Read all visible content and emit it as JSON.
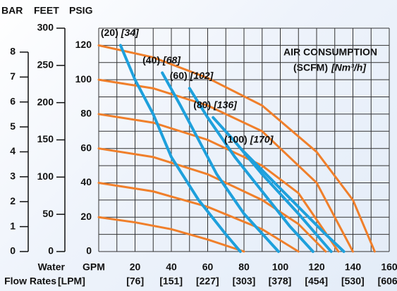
{
  "chart_data": {
    "type": "line",
    "title": "AIR CONSUMPTION",
    "subtitle": "(SCFM)",
    "subtitle_metric": "[Nm³/h]",
    "x_label": "GPM",
    "x2_label": "[LPM]",
    "x_label_prefix": "Water",
    "x2_label_prefix": "Flow Rates",
    "y_label": "PSIG",
    "y2_label": "FEET",
    "y3_label": "BAR",
    "xlim": [
      0,
      160
    ],
    "xticks": [
      20,
      40,
      60,
      80,
      100,
      120,
      140,
      160
    ],
    "x2lim": [
      0,
      606
    ],
    "x2ticks": [
      {
        "value": 76,
        "label": "[76]"
      },
      {
        "value": 151,
        "label": "[151]"
      },
      {
        "value": 227,
        "label": "[227]"
      },
      {
        "value": 303,
        "label": "[303]"
      },
      {
        "value": 378,
        "label": "[378]"
      },
      {
        "value": 454,
        "label": "[454]"
      },
      {
        "value": 530,
        "label": "[530]"
      },
      {
        "value": 606,
        "label": "[606]"
      }
    ],
    "ylim": [
      0,
      130
    ],
    "yticks": [
      0,
      20,
      40,
      60,
      80,
      100,
      120
    ],
    "y2lim": [
      0,
      300
    ],
    "y2ticks": [
      0,
      50,
      100,
      150,
      200,
      250,
      300
    ],
    "y3lim": [
      0,
      8.96
    ],
    "y3ticks": [
      0,
      1,
      2,
      3,
      4,
      5,
      6,
      7,
      8
    ],
    "xgrid": [
      0,
      10,
      20,
      30,
      40,
      50,
      60,
      70,
      80,
      90,
      100,
      110,
      120,
      130,
      140,
      150,
      160
    ],
    "ygrid": [
      0,
      10,
      20,
      30,
      40,
      50,
      60,
      70,
      80,
      90,
      100,
      110,
      120,
      130
    ],
    "grid": true,
    "series": [
      {
        "color": "#f07f2a",
        "x": [
          0,
          20,
          40,
          60,
          80
        ],
        "values": [
          20,
          17,
          13,
          7,
          0
        ]
      },
      {
        "color": "#f07f2a",
        "x": [
          0,
          30,
          60,
          90,
          110
        ],
        "values": [
          40,
          35,
          26,
          13,
          0
        ]
      },
      {
        "color": "#f07f2a",
        "x": [
          0,
          30,
          60,
          90,
          110,
          125
        ],
        "values": [
          60,
          55,
          45,
          30,
          16,
          0
        ]
      },
      {
        "color": "#f07f2a",
        "x": [
          0,
          30,
          60,
          90,
          110,
          132
        ],
        "values": [
          80,
          75,
          65,
          50,
          34,
          0
        ]
      },
      {
        "color": "#f07f2a",
        "x": [
          0,
          30,
          60,
          90,
          120,
          140
        ],
        "values": [
          100,
          95,
          85,
          70,
          40,
          0
        ]
      },
      {
        "color": "#f07f2a",
        "x": [
          0,
          30,
          60,
          90,
          120,
          140,
          152
        ],
        "values": [
          120,
          113,
          101,
          85,
          58,
          30,
          0
        ]
      },
      {
        "color": "#1ea0dc",
        "label": "(20)",
        "label_metric": "[34]",
        "x": [
          12,
          20,
          30,
          40,
          55,
          70,
          78
        ],
        "values": [
          120,
          100,
          80,
          55,
          30,
          10,
          0
        ]
      },
      {
        "color": "#1ea0dc",
        "label": "(40)",
        "label_metric": "[68]",
        "x": [
          35,
          45,
          55,
          65,
          80,
          99
        ],
        "values": [
          104,
          85,
          65,
          45,
          22,
          0
        ]
      },
      {
        "color": "#1ea0dc",
        "label": "(60)",
        "label_metric": "[102]",
        "x": [
          50,
          60,
          75,
          90,
          105,
          118
        ],
        "values": [
          95,
          78,
          55,
          35,
          15,
          0
        ]
      },
      {
        "color": "#1ea0dc",
        "label": "(80)",
        "label_metric": "[136]",
        "x": [
          63,
          75,
          90,
          110,
          128
        ],
        "values": [
          78,
          64,
          45,
          22,
          0
        ]
      },
      {
        "color": "#1ea0dc",
        "label": "(100)",
        "label_metric": "[170]",
        "x": [
          80,
          95,
          110,
          125,
          135
        ],
        "values": [
          58,
          42,
          26,
          10,
          0
        ]
      }
    ]
  }
}
